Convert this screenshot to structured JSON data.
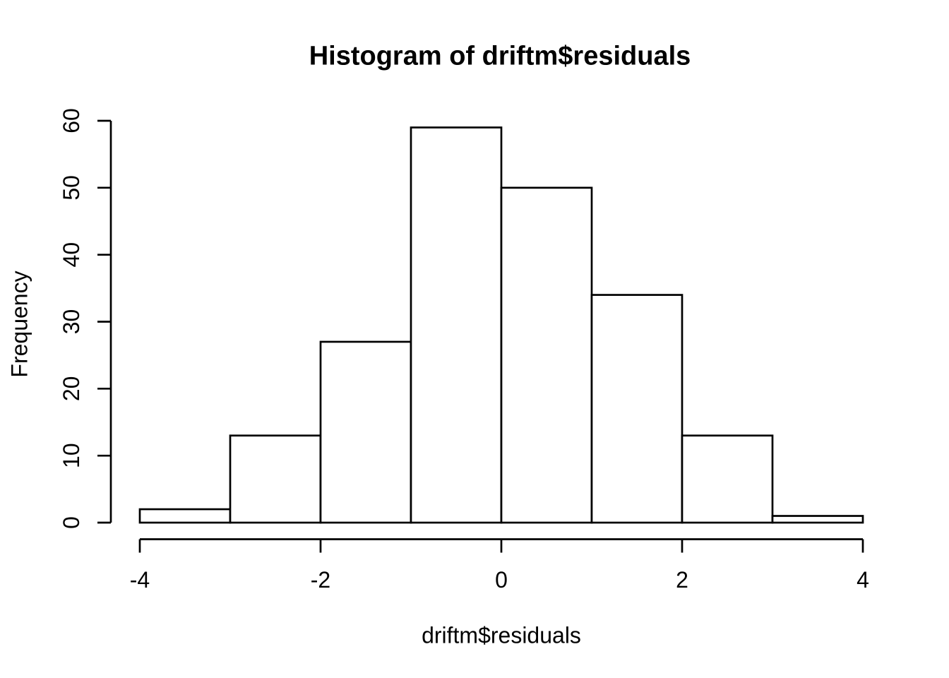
{
  "chart_data": {
    "type": "bar",
    "subtype": "histogram",
    "title": "Histogram of driftm$residuals",
    "xlabel": "driftm$residuals",
    "ylabel": "Frequency",
    "bin_breaks": [
      -4,
      -3,
      -2,
      -1,
      0,
      1,
      2,
      3,
      4
    ],
    "counts": [
      2,
      13,
      27,
      59,
      50,
      34,
      13,
      1
    ],
    "x_ticks": [
      "-4",
      "-2",
      "0",
      "2",
      "4"
    ],
    "x_tick_values": [
      -4,
      -2,
      0,
      2,
      4
    ],
    "y_ticks": [
      "0",
      "10",
      "20",
      "30",
      "40",
      "50",
      "60"
    ],
    "y_tick_values": [
      0,
      10,
      20,
      30,
      40,
      50,
      60
    ],
    "xlim": [
      -4,
      4
    ],
    "ylim": [
      0,
      60
    ],
    "grid": false,
    "legend": "none",
    "bar_fill": "#ffffff",
    "stroke_color": "#000000",
    "background_color": "#ffffff"
  }
}
